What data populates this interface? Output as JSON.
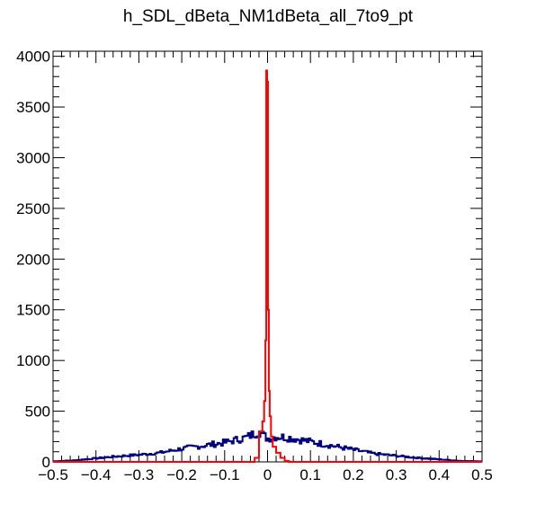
{
  "chart_data": {
    "type": "line",
    "title": "h_SDL_dBeta_NM1dBeta_all_7to9_pt",
    "xlabel": "",
    "ylabel": "",
    "xlim": [
      -0.5,
      0.5
    ],
    "ylim": [
      0,
      4050
    ],
    "xticks": [
      -0.5,
      -0.4,
      -0.3,
      -0.2,
      -0.1,
      0,
      0.1,
      0.2,
      0.3,
      0.4,
      0.5
    ],
    "xtick_labels": [
      "−0.5",
      "−0.4",
      "−0.3",
      "−0.2",
      "−0.1",
      "0",
      "0.1",
      "0.2",
      "0.3",
      "0.4",
      "0.5"
    ],
    "yticks": [
      0,
      500,
      1000,
      1500,
      2000,
      2500,
      3000,
      3500,
      4000
    ],
    "ytick_labels": [
      "0",
      "500",
      "1000",
      "1500",
      "2000",
      "2500",
      "3000",
      "3500",
      "4000"
    ],
    "grid": false,
    "series": [
      {
        "color": "#000080",
        "style": "step",
        "x": [
          -0.5,
          -0.45,
          -0.4,
          -0.35,
          -0.3,
          -0.25,
          -0.2,
          -0.15,
          -0.1,
          -0.05,
          -0.02,
          0,
          0.02,
          0.05,
          0.1,
          0.15,
          0.2,
          0.25,
          0.3,
          0.35,
          0.4,
          0.45,
          0.5
        ],
        "values": [
          5,
          15,
          35,
          55,
          70,
          90,
          130,
          160,
          190,
          240,
          300,
          230,
          250,
          240,
          200,
          160,
          120,
          80,
          60,
          40,
          25,
          10,
          5
        ]
      },
      {
        "color": "#ff0000",
        "style": "step",
        "x": [
          -0.5,
          -0.05,
          -0.03,
          -0.02,
          -0.012,
          -0.008,
          -0.005,
          -0.003,
          -0.001,
          0.001,
          0.003,
          0.005,
          0.008,
          0.012,
          0.02,
          0.03,
          0.04,
          0.05,
          0.5
        ],
        "values": [
          0,
          0,
          40,
          300,
          400,
          600,
          1200,
          3860,
          3750,
          1500,
          700,
          450,
          250,
          150,
          90,
          40,
          10,
          0,
          0
        ]
      }
    ]
  }
}
